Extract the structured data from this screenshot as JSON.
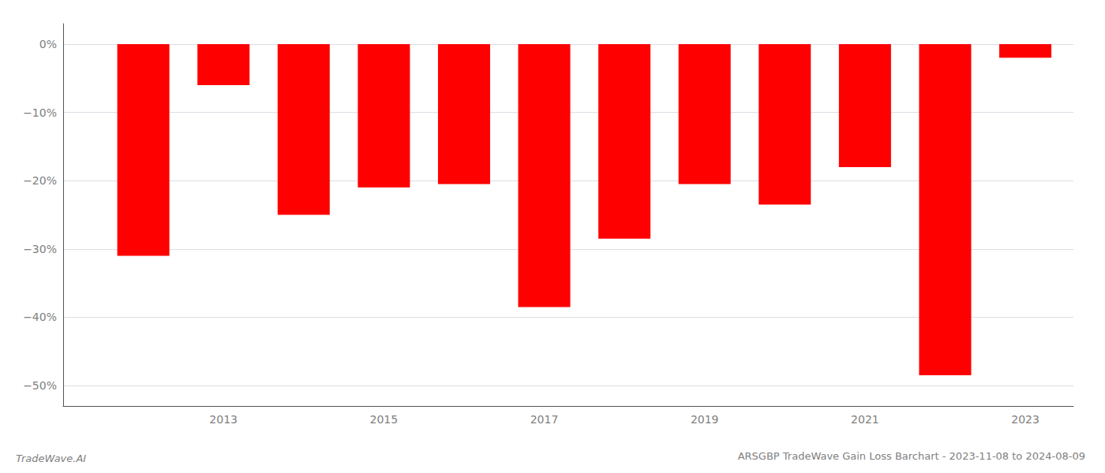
{
  "chart_data": {
    "type": "bar",
    "title": "ARSGBP TradeWave Gain Loss Barchart - 2023-11-08 to 2024-08-09",
    "annotations": [
      "TradeWave.AI"
    ],
    "x": [
      2012,
      2013,
      2014,
      2015,
      2016,
      2017,
      2018,
      2019,
      2020,
      2021,
      2022,
      2023
    ],
    "values": [
      -31.0,
      -6.0,
      -25.0,
      -21.0,
      -20.5,
      -38.5,
      -28.5,
      -20.5,
      -23.5,
      -18.0,
      -48.5,
      -2.0
    ],
    "color": "#ff0000",
    "xlim": [
      2011,
      2023.6
    ],
    "xticks": [
      2013,
      2015,
      2017,
      2019,
      2021,
      2023
    ],
    "ylim": [
      -53,
      3
    ],
    "yticks": [
      {
        "value": 0,
        "label": "0%"
      },
      {
        "value": -10,
        "label": "−10%"
      },
      {
        "value": -20,
        "label": "−20%"
      },
      {
        "value": -30,
        "label": "−30%"
      },
      {
        "value": -40,
        "label": "−40%"
      },
      {
        "value": -50,
        "label": "−50%"
      }
    ],
    "grid": true
  }
}
